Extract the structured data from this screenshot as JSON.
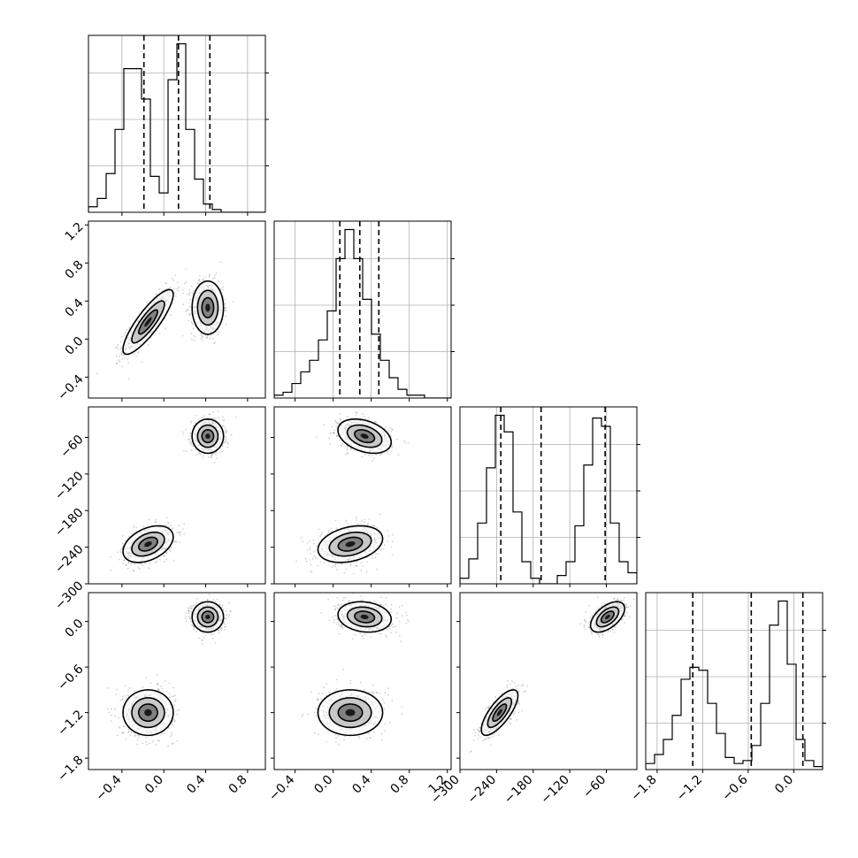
{
  "chart_data": {
    "type": "corner",
    "parameters": 4,
    "axes": [
      {
        "range": [
          -0.72,
          0.97
        ],
        "ticks": [
          -0.4,
          0.0,
          0.4,
          0.8
        ],
        "tick_labels": [
          "−0.4",
          "0.0",
          "0.4",
          "0.8"
        ]
      },
      {
        "range": [
          -0.62,
          1.24
        ],
        "ticks": [
          -0.4,
          0.0,
          0.4,
          0.8,
          1.2
        ],
        "tick_labels": [
          "−0.4",
          "0.0",
          "0.4",
          "0.8",
          "1.2"
        ]
      },
      {
        "range": [
          -300,
          -10
        ],
        "ticks": [
          -300,
          -240,
          -180,
          -120,
          -60
        ],
        "tick_labels": [
          "−300",
          "−240",
          "−180",
          "−120",
          "−60"
        ]
      },
      {
        "range": [
          -1.95,
          0.38
        ],
        "ticks": [
          -1.8,
          -1.2,
          -0.6,
          0.0
        ],
        "tick_labels": [
          "−1.8",
          "−1.2",
          "−0.6",
          "0.0"
        ]
      }
    ],
    "histograms": [
      {
        "param": 0,
        "start": -0.72,
        "step": 0.0845,
        "counts": [
          2,
          5,
          14,
          30,
          52,
          52,
          41,
          13,
          7,
          48,
          61,
          30,
          12,
          3,
          1,
          0,
          0,
          0,
          0,
          0
        ],
        "quantiles": [
          -0.19,
          0.14,
          0.44
        ]
      },
      {
        "param": 1,
        "start": -0.62,
        "step": 0.093,
        "counts": [
          1,
          2,
          5,
          9,
          13,
          20,
          30,
          48,
          58,
          48,
          34,
          22,
          13,
          7,
          3,
          1,
          1,
          0,
          0,
          0
        ],
        "quantiles": [
          0.07,
          0.28,
          0.48
        ]
      },
      {
        "param": 2,
        "start": -300,
        "step": 14.5,
        "counts": [
          2,
          9,
          22,
          42,
          61,
          55,
          26,
          8,
          2,
          0,
          0,
          3,
          8,
          21,
          43,
          60,
          57,
          22,
          8,
          4
        ],
        "quantiles": [
          -233,
          -167,
          -62
        ]
      },
      {
        "param": 3,
        "start": -1.95,
        "step": 0.1165,
        "counts": [
          2,
          5,
          10,
          18,
          30,
          34,
          33,
          22,
          12,
          4,
          2,
          3,
          8,
          22,
          48,
          56,
          35,
          10,
          3,
          1
        ],
        "quantiles": [
          -1.33,
          -0.56,
          0.12
        ]
      }
    ],
    "blob_centers": [
      [
        -0.15,
        0.18,
        -235,
        -1.2
      ],
      [
        0.42,
        0.33,
        -58,
        0.06
      ]
    ],
    "blob_sigmas": [
      [
        0.12,
        0.17,
        15,
        0.15
      ],
      [
        0.075,
        0.14,
        14,
        0.1
      ]
    ],
    "blob_correlations": {
      "0-1": [
        0.85,
        0.0
      ],
      "0-2": [
        0.4,
        0.0
      ],
      "1-2": [
        0.3,
        -0.35
      ],
      "0-3": [
        0.0,
        0.0
      ],
      "1-3": [
        0.0,
        -0.15
      ],
      "2-3": [
        0.75,
        0.55
      ]
    },
    "xlabel": "",
    "ylabel": "",
    "title": ""
  }
}
